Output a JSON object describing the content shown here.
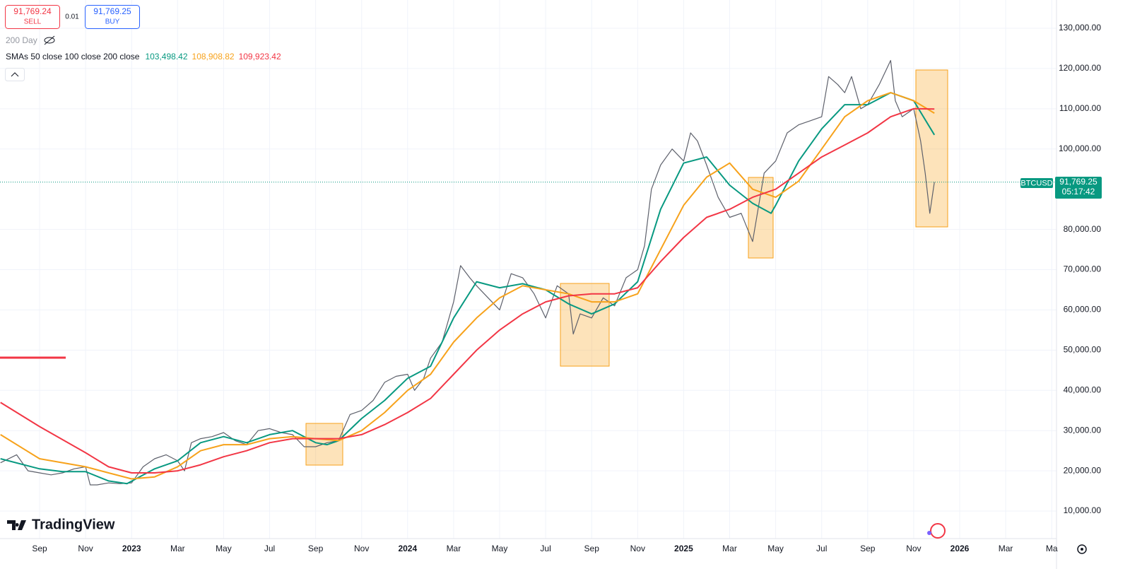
{
  "header": {
    "sell_price": "91,769.24",
    "sell": "SELL",
    "spread": "0.01",
    "buy_price": "91,769.25",
    "buy": "BUY",
    "indicator_hidden": "200 Day"
  },
  "legend": {
    "title": "SMAs 50 close 100 close 200 close",
    "values": [
      {
        "value": 103498.42,
        "label": "103,498.42"
      },
      {
        "value": 108908.82,
        "label": "108,908.82"
      },
      {
        "value": 109923.42,
        "label": "109,923.42"
      }
    ]
  },
  "price_tag": {
    "symbol": "BTCUSD",
    "price": {
      "value": 91769.25,
      "label": "91,769.25"
    },
    "countdown": "05:17:42"
  },
  "brand": "TradingView",
  "chart_data": {
    "type": "line",
    "xlim": [
      -1.72,
      44.1
    ],
    "ylim": [
      -2000,
      137000
    ],
    "xticks": [
      {
        "value": 0,
        "label": "Sep"
      },
      {
        "value": 2,
        "label": "Nov"
      },
      {
        "value": 4,
        "label": "2023"
      },
      {
        "value": 6,
        "label": "Mar"
      },
      {
        "value": 8,
        "label": "May"
      },
      {
        "value": 10,
        "label": "Jul"
      },
      {
        "value": 12,
        "label": "Sep"
      },
      {
        "value": 14,
        "label": "Nov"
      },
      {
        "value": 16,
        "label": "2024"
      },
      {
        "value": 18,
        "label": "Mar"
      },
      {
        "value": 20,
        "label": "May"
      },
      {
        "value": 22,
        "label": "Jul"
      },
      {
        "value": 24,
        "label": "Sep"
      },
      {
        "value": 26,
        "label": "Nov"
      },
      {
        "value": 28,
        "label": "2025"
      },
      {
        "value": 30,
        "label": "Mar"
      },
      {
        "value": 32,
        "label": "May"
      },
      {
        "value": 34,
        "label": "Jul"
      },
      {
        "value": 36,
        "label": "Sep"
      },
      {
        "value": 38,
        "label": "Nov"
      },
      {
        "value": 40,
        "label": "2026"
      },
      {
        "value": 42,
        "label": "Mar"
      },
      {
        "value": 44,
        "label": "Ma"
      }
    ],
    "yticks": [
      {
        "value": 10000,
        "label": "10,000.00"
      },
      {
        "value": 20000,
        "label": "20,000.00"
      },
      {
        "value": 30000,
        "label": "30,000.00"
      },
      {
        "value": 40000,
        "label": "40,000.00"
      },
      {
        "value": 50000,
        "label": "50,000.00"
      },
      {
        "value": 60000,
        "label": "60,000.00"
      },
      {
        "value": 70000,
        "label": "70,000.00"
      },
      {
        "value": 80000,
        "label": "80,000.00"
      },
      {
        "value": 100000,
        "label": "100,000.00"
      },
      {
        "value": 110000,
        "label": "110,000.00"
      },
      {
        "value": 120000,
        "label": "120,000.00"
      },
      {
        "value": 130000,
        "label": "130,000.00"
      }
    ],
    "grid": true,
    "series": [
      {
        "name": "BTCUSD",
        "color": "#5d606b",
        "x": [
          -1.7,
          -1,
          -0.5,
          0,
          0.5,
          1,
          1.5,
          2,
          2.2,
          2.5,
          3,
          3.5,
          4,
          4.5,
          5,
          5.5,
          6,
          6.3,
          6.6,
          7,
          7.5,
          8,
          8.5,
          9,
          9.5,
          10,
          10.5,
          11,
          11.5,
          12,
          12.5,
          13,
          13.5,
          14,
          14.5,
          15,
          15.5,
          16,
          16.3,
          16.7,
          17,
          17.5,
          18,
          18.3,
          18.7,
          19,
          19.5,
          20,
          20.5,
          21,
          21.5,
          22,
          22.5,
          23,
          23.2,
          23.5,
          24,
          24.5,
          25,
          25.5,
          26,
          26.3,
          26.6,
          27,
          27.5,
          28,
          28.3,
          28.6,
          29,
          29.5,
          30,
          30.5,
          31,
          31.5,
          32,
          32.5,
          33,
          33.5,
          34,
          34.3,
          34.7,
          35,
          35.3,
          35.7,
          36,
          36.5,
          37,
          37.2,
          37.5,
          38,
          38.3,
          38.5,
          38.7,
          38.9
        ],
        "values": [
          22000,
          24000,
          20000,
          19500,
          19000,
          19500,
          20500,
          21000,
          16500,
          16500,
          17000,
          16800,
          17000,
          21000,
          23000,
          24000,
          22500,
          20000,
          27000,
          28000,
          28500,
          29500,
          27500,
          26500,
          30000,
          30500,
          29500,
          29000,
          26000,
          26000,
          27000,
          27500,
          34000,
          35000,
          37500,
          42000,
          43500,
          44000,
          40000,
          43000,
          48000,
          52000,
          62000,
          71000,
          68000,
          66000,
          63000,
          60000,
          69000,
          68000,
          64000,
          58000,
          66000,
          64000,
          54000,
          59000,
          58000,
          63000,
          61000,
          68000,
          70000,
          76000,
          90000,
          96000,
          100000,
          97000,
          104000,
          102000,
          96000,
          88000,
          83000,
          84000,
          77000,
          94000,
          97000,
          104000,
          106000,
          107000,
          108000,
          118000,
          116000,
          114000,
          118000,
          110000,
          111000,
          116000,
          122000,
          112000,
          108000,
          110000,
          102000,
          94000,
          84000,
          91769.25
        ]
      },
      {
        "name": "SMA 50",
        "color": "#089981",
        "x": [
          -1.7,
          0,
          1,
          2,
          3,
          3.8,
          5,
          6,
          7,
          8,
          9,
          10,
          11,
          12,
          12.5,
          13,
          14,
          15,
          16,
          17,
          18,
          19,
          20,
          21,
          22,
          23,
          24,
          25,
          26,
          27,
          28,
          29,
          30,
          31,
          31.8,
          32,
          33,
          34,
          35,
          36,
          37,
          38,
          38.9
        ],
        "values": [
          23000,
          20500,
          19800,
          19800,
          17500,
          16800,
          20500,
          22500,
          27000,
          28500,
          27000,
          29000,
          30000,
          27000,
          26500,
          27500,
          33000,
          37500,
          43000,
          46000,
          58000,
          67000,
          65500,
          66500,
          65000,
          61500,
          59000,
          61500,
          67000,
          85000,
          96500,
          98000,
          91000,
          86500,
          84000,
          86000,
          97000,
          105000,
          111000,
          111000,
          114000,
          112000,
          103498.42
        ]
      },
      {
        "name": "SMA 100",
        "color": "#f7a21b",
        "x": [
          -1.7,
          0,
          2,
          3,
          4,
          5,
          6,
          7,
          8,
          9,
          10,
          11,
          12,
          13,
          14,
          15,
          16,
          17,
          18,
          19,
          20,
          21,
          22,
          23,
          24,
          25,
          26,
          27,
          28,
          29,
          30,
          31,
          32,
          33,
          34,
          35,
          36,
          37,
          38,
          38.9
        ],
        "values": [
          29000,
          23000,
          21000,
          19500,
          18000,
          18500,
          21000,
          25000,
          26500,
          26500,
          28000,
          28500,
          28000,
          27500,
          30000,
          34500,
          40000,
          44000,
          52000,
          58000,
          63000,
          66000,
          65000,
          64000,
          62000,
          62000,
          64000,
          75000,
          86000,
          93000,
          96500,
          90000,
          88000,
          92000,
          100000,
          108000,
          112000,
          114000,
          112000,
          108908.82
        ]
      },
      {
        "name": "SMA 200",
        "color": "#f23645",
        "x": [
          -1.7,
          0,
          2,
          3,
          4,
          5,
          6,
          7,
          8,
          9,
          10,
          11,
          12,
          13,
          14,
          15,
          16,
          17,
          18,
          19,
          20,
          21,
          22,
          23,
          24,
          25,
          26,
          27,
          28,
          29,
          30,
          31,
          32,
          33,
          34,
          35,
          36,
          37,
          38,
          38.9
        ],
        "values": [
          37000,
          31000,
          24500,
          21000,
          19500,
          19500,
          20000,
          21500,
          23500,
          25000,
          27000,
          28000,
          28000,
          28000,
          29000,
          31500,
          34500,
          38000,
          44000,
          50000,
          55000,
          59000,
          62000,
          63500,
          64000,
          64000,
          65500,
          72000,
          78000,
          83000,
          85000,
          88000,
          90000,
          94000,
          98000,
          101000,
          104000,
          108000,
          110000,
          109923.42
        ]
      }
    ]
  }
}
